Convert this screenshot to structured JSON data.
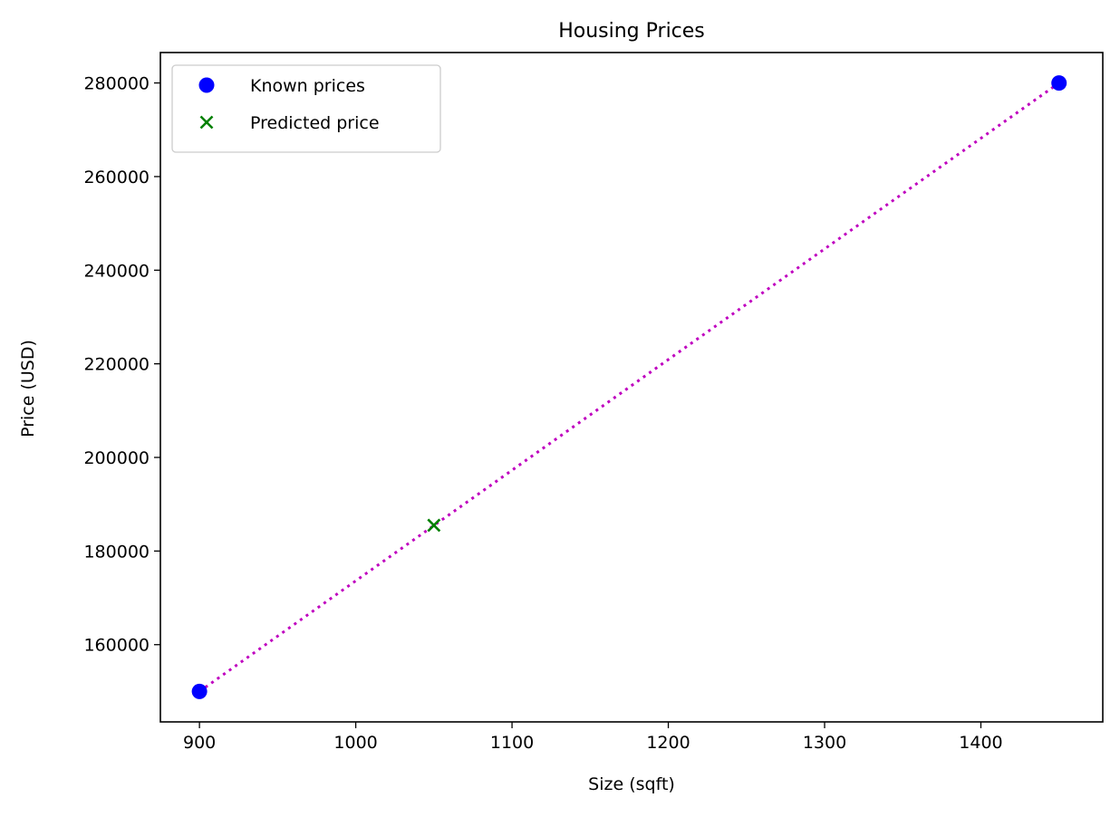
{
  "chart_data": {
    "type": "scatter",
    "title": "Housing Prices",
    "xlabel": "Size (sqft)",
    "ylabel": "Price (USD)",
    "xlim": [
      875,
      1478
    ],
    "ylim": [
      143500,
      286500
    ],
    "xticks": [
      900,
      1000,
      1100,
      1200,
      1300,
      1400
    ],
    "yticks": [
      160000,
      180000,
      200000,
      220000,
      240000,
      260000,
      280000
    ],
    "grid": false,
    "legend_position": "upper-left",
    "series": [
      {
        "name": "Known prices",
        "kind": "scatter",
        "marker": "circle",
        "color": "#0000ff",
        "points": [
          {
            "x": 900,
            "y": 150000
          },
          {
            "x": 1450,
            "y": 280000
          }
        ]
      },
      {
        "name": "Predicted price",
        "kind": "scatter",
        "marker": "x",
        "color": "#008000",
        "points": [
          {
            "x": 1050,
            "y": 185500
          }
        ]
      },
      {
        "kind": "line",
        "style": "dotted",
        "color": "#bf00bf",
        "points": [
          {
            "x": 900,
            "y": 150000
          },
          {
            "x": 1450,
            "y": 280000
          }
        ]
      }
    ]
  }
}
